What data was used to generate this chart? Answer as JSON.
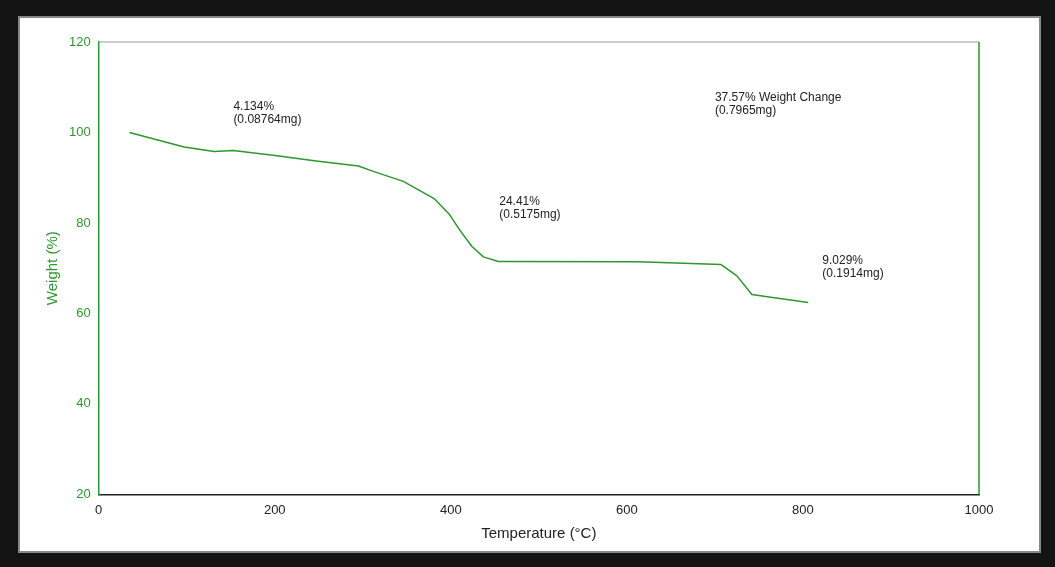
{
  "chart_data": {
    "type": "line",
    "xlabel": "Temperature (°C)",
    "ylabel": "Weight (%)",
    "xlim": [
      0,
      1000
    ],
    "xticks": [
      0,
      200,
      400,
      600,
      800,
      1000
    ],
    "ylim": [
      20,
      120
    ],
    "yticks": [
      20,
      40,
      60,
      80,
      100,
      120
    ],
    "grid": false,
    "legend": false,
    "marker": "none",
    "line_style": "solid",
    "series": [
      {
        "color": "#2e962e",
        "x": [
          35,
          97,
          131,
          153,
          196,
          247,
          295,
          312,
          346,
          381,
          398,
          411,
          424,
          437,
          454,
          613,
          707,
          725,
          742,
          806
        ],
        "values": [
          100,
          96.8,
          95.8,
          96,
          95,
          93.7,
          92.6,
          91.4,
          89.2,
          85.4,
          82,
          78.2,
          74.8,
          72.5,
          71.5,
          71.4,
          70.8,
          68.3,
          64.2,
          62.4
        ]
      }
    ],
    "annotations": [
      "4.134%\n(0.08764mg)",
      "24.41%\n(0.5175mg)",
      "37.57% Weight Change\n(0.7965mg)",
      "9.029%\n(0.1914mg)"
    ]
  }
}
